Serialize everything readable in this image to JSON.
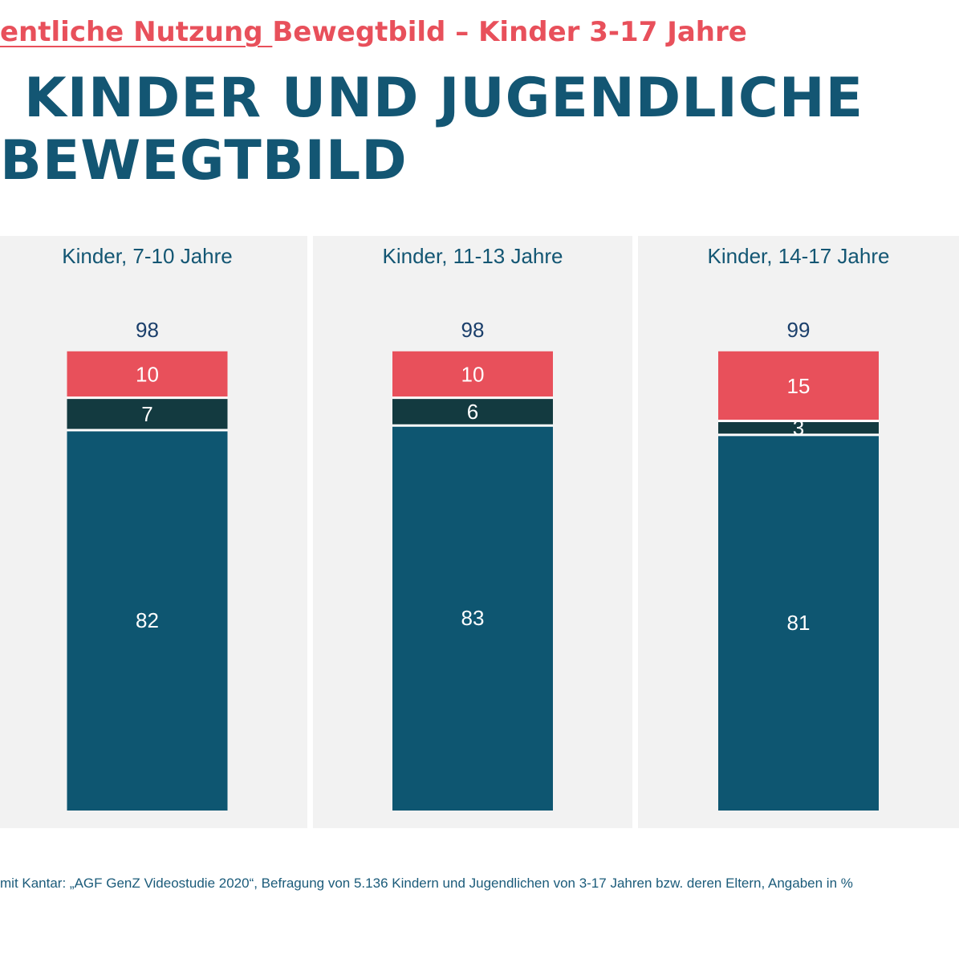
{
  "header": {
    "subtitle_underlined": "entliche Nutzung ",
    "subtitle_rest": "Bewegtbild – Kinder 3-17 Jahre",
    "title_line1": "KINDER UND JUGENDLICHE",
    "title_line2": "BEWEGTBILD"
  },
  "footer": {
    "source": "mit Kantar: „AGF GenZ Videostudie 2020“, Befragung von 5.136 Kindern und Jugendlichen von 3-17 Jahren bzw. deren Eltern, Angaben in %"
  },
  "colors": {
    "panel_bg": "#f2f2f2",
    "segment_bottom": "#0e5671",
    "segment_middle": "#133a40",
    "segment_top": "#e8505b",
    "label_dark": "#1b3f6b",
    "title_blue": "#135673",
    "subtitle_red": "#e8505b"
  },
  "chart_data": {
    "type": "bar",
    "stacked": true,
    "categories": [
      "Kinder, 7-10 Jahre",
      "Kinder, 11-13 Jahre",
      "Kinder, 14-17 Jahre"
    ],
    "totals": [
      98,
      98,
      99
    ],
    "series": [
      {
        "values": [
          82,
          83,
          81
        ]
      },
      {
        "values": [
          7,
          6,
          3
        ]
      },
      {
        "values": [
          10,
          10,
          15
        ]
      }
    ],
    "ylim": [
      0,
      100
    ],
    "legend": "none",
    "grid": false
  }
}
